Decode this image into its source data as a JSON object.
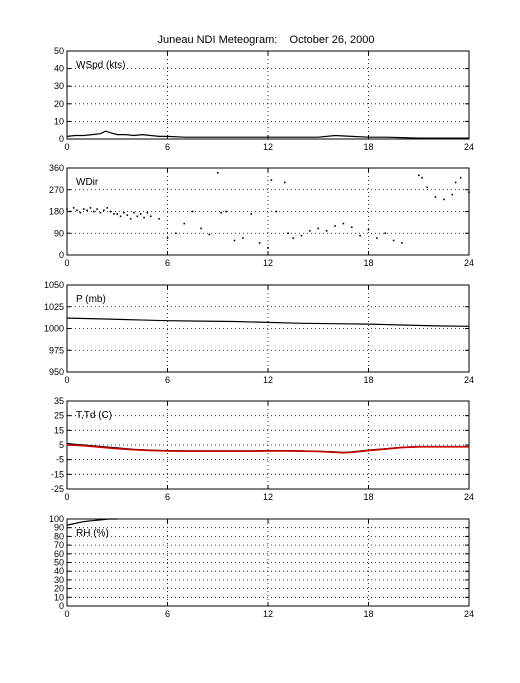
{
  "title": "Juneau NDI Meteogram:    October 26, 2000",
  "chart_data": [
    {
      "type": "line",
      "label": "WSpd (kts)",
      "xlim": [
        0,
        24
      ],
      "ylim": [
        0,
        50
      ],
      "xticks": [
        "0",
        "6",
        "12",
        "18",
        "24"
      ],
      "yticks": [
        "0",
        "10",
        "20",
        "30",
        "40",
        "50"
      ],
      "grid": true,
      "series": [
        {
          "color": "#000000",
          "x": [
            0,
            0.5,
            1,
            1.5,
            2,
            2.3,
            2.6,
            3,
            3.5,
            4,
            4.5,
            5,
            5.5,
            6,
            7,
            8,
            9,
            10,
            11,
            12,
            13,
            14,
            15,
            15.5,
            16,
            17,
            18,
            19,
            20,
            21,
            22,
            23,
            24
          ],
          "y": [
            1.5,
            2,
            2,
            2.5,
            3,
            4.5,
            3.5,
            2.5,
            2.5,
            2,
            2.5,
            2,
            1.5,
            1.5,
            1,
            1,
            1,
            1,
            1,
            1,
            1,
            1,
            1,
            1.5,
            2,
            1.5,
            1,
            1,
            0.8,
            0.5,
            0.5,
            0.5,
            0.5
          ]
        }
      ]
    },
    {
      "type": "scatter",
      "label": "WDir",
      "xlim": [
        0,
        24
      ],
      "ylim": [
        0,
        360
      ],
      "xticks": [
        "0",
        "6",
        "12",
        "18",
        "24"
      ],
      "yticks": [
        "0",
        "90",
        "180",
        "270",
        "360"
      ],
      "grid": true,
      "series": [
        {
          "color": "#000000",
          "x": [
            0,
            0.2,
            0.4,
            0.6,
            0.8,
            1,
            1.2,
            1.4,
            1.6,
            1.8,
            2,
            2.2,
            2.4,
            2.6,
            2.8,
            3,
            3.2,
            3.4,
            3.6,
            3.8,
            4,
            4.2,
            4.4,
            4.6,
            4.8,
            5,
            5.5,
            6,
            6.5,
            7,
            7.5,
            8,
            8.5,
            9,
            9.2,
            9.5,
            10,
            10.5,
            11,
            11.5,
            12,
            12.2,
            12.5,
            13,
            13.2,
            13.5,
            14,
            14.5,
            15,
            15.5,
            16,
            16.5,
            17,
            17.5,
            18,
            18.5,
            19,
            19.5,
            20,
            21,
            21.2,
            21.5,
            22,
            22.5,
            23,
            23.2,
            23.5,
            24
          ],
          "y": [
            190,
            180,
            195,
            185,
            175,
            190,
            185,
            195,
            180,
            190,
            175,
            185,
            195,
            180,
            170,
            170,
            160,
            175,
            165,
            150,
            175,
            160,
            170,
            155,
            175,
            160,
            150,
            70,
            90,
            130,
            180,
            110,
            85,
            340,
            175,
            180,
            60,
            70,
            170,
            50,
            30,
            310,
            180,
            300,
            90,
            70,
            80,
            100,
            110,
            100,
            120,
            130,
            115,
            80,
            105,
            70,
            90,
            60,
            50,
            330,
            320,
            280,
            240,
            230,
            250,
            300,
            320,
            260
          ]
        }
      ]
    },
    {
      "type": "line",
      "label": "P (mb)",
      "xlim": [
        0,
        24
      ],
      "ylim": [
        950,
        1050
      ],
      "xticks": [
        "0",
        "6",
        "12",
        "18",
        "24"
      ],
      "yticks": [
        "950",
        "975",
        "1000",
        "1025",
        "1050"
      ],
      "grid": true,
      "series": [
        {
          "color": "#000000",
          "x": [
            0,
            2,
            4,
            6,
            8,
            10,
            12,
            14,
            16,
            18,
            20,
            22,
            24
          ],
          "y": [
            1012,
            1011,
            1010,
            1009,
            1008.5,
            1008,
            1007,
            1006,
            1005.5,
            1005,
            1004,
            1003,
            1002.5
          ]
        }
      ]
    },
    {
      "type": "line",
      "label": "T,Td (C)",
      "xlim": [
        0,
        24
      ],
      "ylim": [
        -25,
        35
      ],
      "xticks": [
        "0",
        "6",
        "12",
        "18",
        "24"
      ],
      "yticks": [
        "-25",
        "-15",
        "-5",
        "5",
        "15",
        "25",
        "35"
      ],
      "grid": true,
      "series": [
        {
          "color": "#000000",
          "x": [
            0,
            0.5,
            1,
            2,
            3,
            4,
            5,
            6,
            7,
            8,
            9,
            10,
            11,
            12,
            13,
            14,
            15,
            16,
            16.5,
            17,
            18,
            19,
            20,
            21,
            22,
            23,
            24
          ],
          "y": [
            6,
            5.5,
            5,
            4,
            3,
            2,
            1.5,
            1.2,
            1,
            1,
            1,
            1,
            1,
            1.2,
            1.2,
            1,
            0.8,
            0.3,
            0,
            0.3,
            1.5,
            2.5,
            3.5,
            4,
            4,
            4,
            4
          ]
        },
        {
          "color": "#cc0000",
          "x": [
            0,
            0.5,
            1,
            2,
            3,
            4,
            5,
            6,
            7,
            8,
            9,
            10,
            11,
            12,
            13,
            14,
            15,
            16,
            16.5,
            17,
            18,
            19,
            20,
            21,
            22,
            23,
            24
          ],
          "y": [
            5,
            4.8,
            4.5,
            3.5,
            2.5,
            1.8,
            1.2,
            1,
            0.8,
            0.8,
            0.8,
            0.8,
            0.8,
            1,
            1,
            0.8,
            0.6,
            0,
            -0.3,
            0,
            1.2,
            2.2,
            3.2,
            3.8,
            3.8,
            3.8,
            3.8
          ]
        }
      ]
    },
    {
      "type": "line",
      "label": "RH (%)",
      "xlim": [
        0,
        24
      ],
      "ylim": [
        0,
        100
      ],
      "xticks": [
        "0",
        "6",
        "12",
        "18",
        "24"
      ],
      "yticks": [
        "0",
        "10",
        "20",
        "30",
        "40",
        "50",
        "60",
        "70",
        "80",
        "90",
        "100"
      ],
      "grid": true,
      "series": [
        {
          "color": "#000000",
          "x": [
            0,
            0.5,
            1,
            1.5,
            2,
            2.5,
            3
          ],
          "y": [
            93,
            95,
            97,
            98,
            99,
            100,
            100
          ]
        }
      ]
    }
  ]
}
